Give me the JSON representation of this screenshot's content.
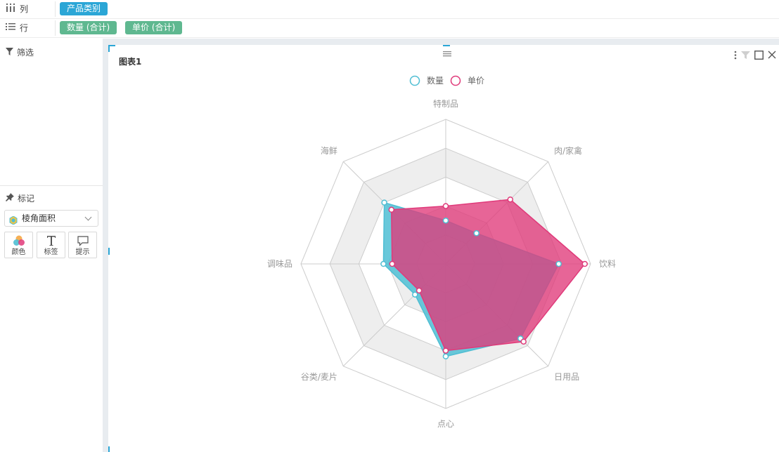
{
  "shelves": {
    "columns": {
      "label": "列",
      "pills": [
        "产品类别"
      ]
    },
    "rows": {
      "label": "行",
      "pills": [
        "数量 (合计)",
        "单价 (合计)"
      ]
    }
  },
  "filter_panel": {
    "title": "筛选"
  },
  "marks_panel": {
    "title": "标记",
    "mark_type": "棱角面积",
    "buttons": [
      {
        "label": "颜色",
        "icon": "color-icon"
      },
      {
        "label": "标签",
        "icon": "label-icon"
      },
      {
        "label": "提示",
        "icon": "tooltip-icon"
      }
    ]
  },
  "card": {
    "title": "图表1",
    "tools": [
      "more-icon",
      "filter-icon",
      "maximize-icon",
      "close-icon"
    ]
  },
  "colors": {
    "accent": "#2ba6d6",
    "pill_green": "#5fb890",
    "series_quantity": "#4fbed3",
    "series_price": "#e03a7a"
  },
  "chart_data": {
    "type": "radar",
    "shape": "polygon",
    "title": "图表1",
    "indicators": [
      "特制品",
      "肉/家禽",
      "饮料",
      "日用品",
      "点心",
      "谷类/麦片",
      "调味品",
      "海鲜"
    ],
    "r_max": 1.0,
    "levels": 5,
    "split_area": true,
    "legend": {
      "position": "top-center"
    },
    "series": [
      {
        "name": "数量",
        "color": "#4fbed3",
        "values": [
          0.3,
          0.3,
          0.78,
          0.73,
          0.64,
          0.3,
          0.43,
          0.6
        ]
      },
      {
        "name": "单价",
        "color": "#e03a7a",
        "values": [
          0.4,
          0.63,
          0.96,
          0.76,
          0.6,
          0.26,
          0.37,
          0.53
        ]
      }
    ]
  }
}
